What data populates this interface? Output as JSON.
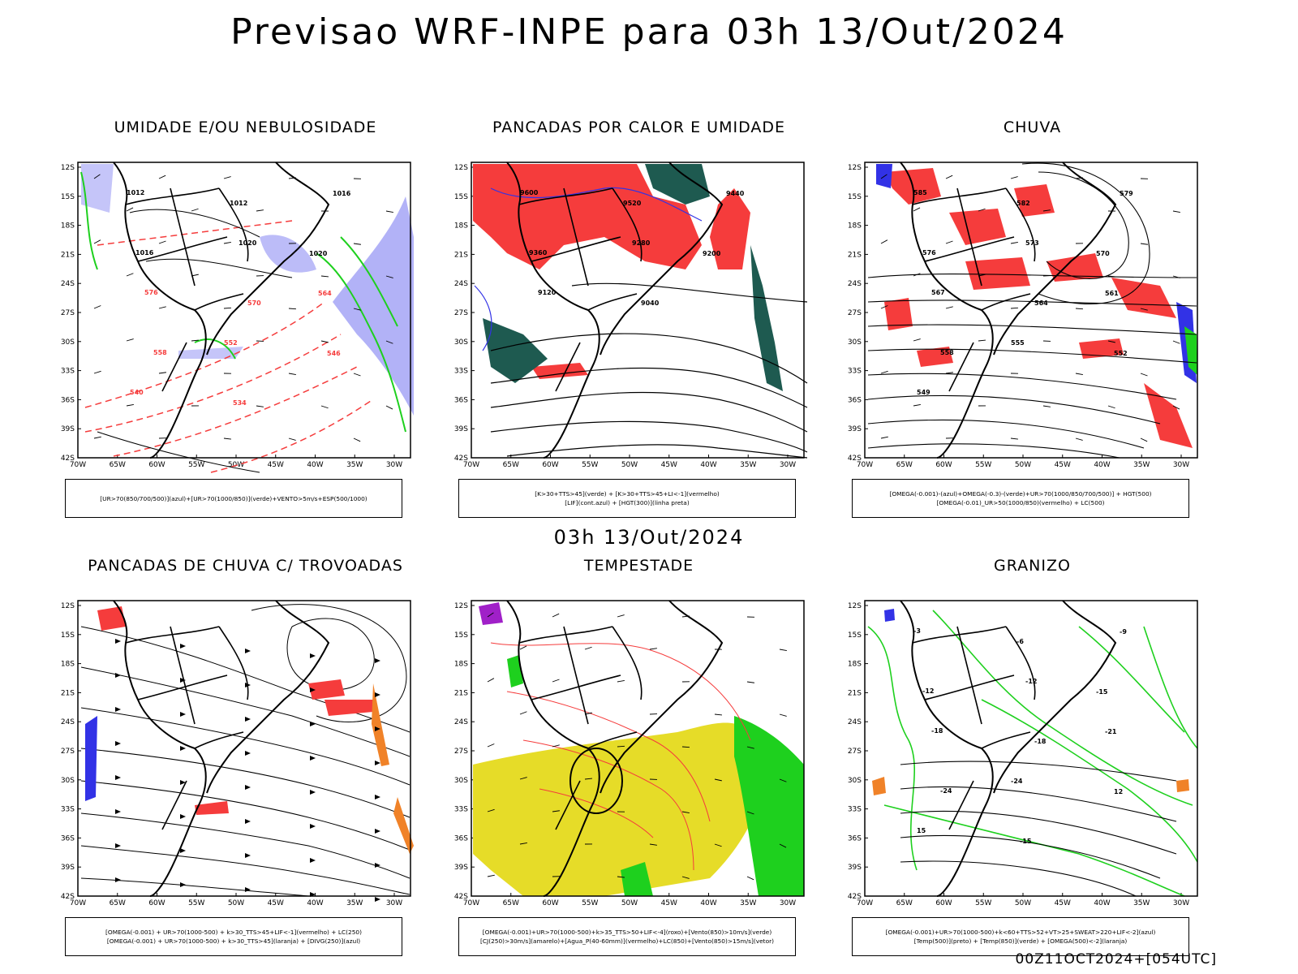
{
  "header": {
    "title": "Previsao WRF-INPE  para 03h 13/Out/2024"
  },
  "middle": {
    "subtitle": "03h 13/Out/2024"
  },
  "footer": {
    "run_info": "00Z11OCT2024+[054UTC]"
  },
  "axes": {
    "lat_labels": [
      "12S",
      "15S",
      "18S",
      "21S",
      "24S",
      "27S",
      "30S",
      "33S",
      "36S",
      "39S",
      "42S"
    ],
    "lon_labels": [
      "70W",
      "65W",
      "60W",
      "55W",
      "50W",
      "45W",
      "40W",
      "35W",
      "30W"
    ]
  },
  "panels": [
    {
      "id": "umidade",
      "title": "UMIDADE E/OU NEBULOSIDADE",
      "legend": [
        "[UR>70(850/700/500)](azul)+[UR>70(1000/850)](verde)+VENTO>5m/s+ESP(500/1000)"
      ],
      "contour_labels": [
        "1012",
        "1012",
        "1016",
        "1016",
        "1020",
        "1020",
        "576",
        "570",
        "564",
        "558",
        "552",
        "546",
        "540",
        "534"
      ]
    },
    {
      "id": "pancadas-calor",
      "title": "PANCADAS POR CALOR E UMIDADE",
      "legend": [
        "[K>30+TTS>45](verde) + [K>30+TTS>45+LI<-1](vermelho)",
        "[LIF](cont.azul) + [HGT(300)](linha preta)"
      ],
      "contour_labels": [
        "9600",
        "9520",
        "9440",
        "9360",
        "9280",
        "9200",
        "9120",
        "9040"
      ]
    },
    {
      "id": "chuva",
      "title": "CHUVA",
      "legend": [
        "[OMEGA(-0.001)-(azul)+OMEGA(-0.3)-(verde)+UR>70(1000/850/700/500)] + HGT(500)",
        "[OMEGA(-0.01)_UR>50(1000/850)(vermelho) + LC(500)"
      ],
      "contour_labels": [
        "585",
        "582",
        "579",
        "576",
        "573",
        "570",
        "567",
        "564",
        "561",
        "558",
        "555",
        "552",
        "549"
      ]
    },
    {
      "id": "trovoadas",
      "title": "PANCADAS DE CHUVA C/ TROVOADAS",
      "legend": [
        "[OMEGA(-0.001) + UR>70(1000-500) + k>30_TTS>45+LIF<-1](vermelho) + LC(250)",
        "[OMEGA(-0.001) + UR>70(1000-500) + k>30_TTS>45](laranja) + [DIVG(250)](azul)"
      ],
      "contour_labels": []
    },
    {
      "id": "tempestade",
      "title": "TEMPESTADE",
      "legend": [
        "[OMEGA(-0.001)+UR>70(1000-500)+k>35_TTS>50+LIF<-4](roxo)+[Vento(850)>10m/s](verde)",
        "[CJ(250)>30m/s](amarelo)+[Agua_P(40-60mm)](vermelho)+LC(850)+[Vento(850)>15m/s](vetor)"
      ],
      "contour_labels": []
    },
    {
      "id": "granizo",
      "title": "GRANIZO",
      "legend": [
        "[OMEGA(-0.001)+UR>70(1000-500)+k<60+TTS>52+VT>25+SWEAT>220+LIF<-2](azul)",
        "[Temp(500)](preto) + [Temp(850)](verde) + [OMEGA(500)<-2](laranja)"
      ],
      "contour_labels": [
        "-3",
        "-6",
        "-9",
        "-12",
        "-12",
        "-15",
        "-18",
        "-18",
        "-21",
        "-24",
        "-24",
        "12",
        "15",
        "-15"
      ]
    }
  ],
  "colors": {
    "blue_humidity": "#9f9ff5",
    "green_humidity": "#1ed01e",
    "red_area": "#f53c3c",
    "dark_teal": "#1e5a50",
    "yellow_jet": "#e6dc28",
    "orange": "#f08228",
    "purple": "#a020c8"
  }
}
